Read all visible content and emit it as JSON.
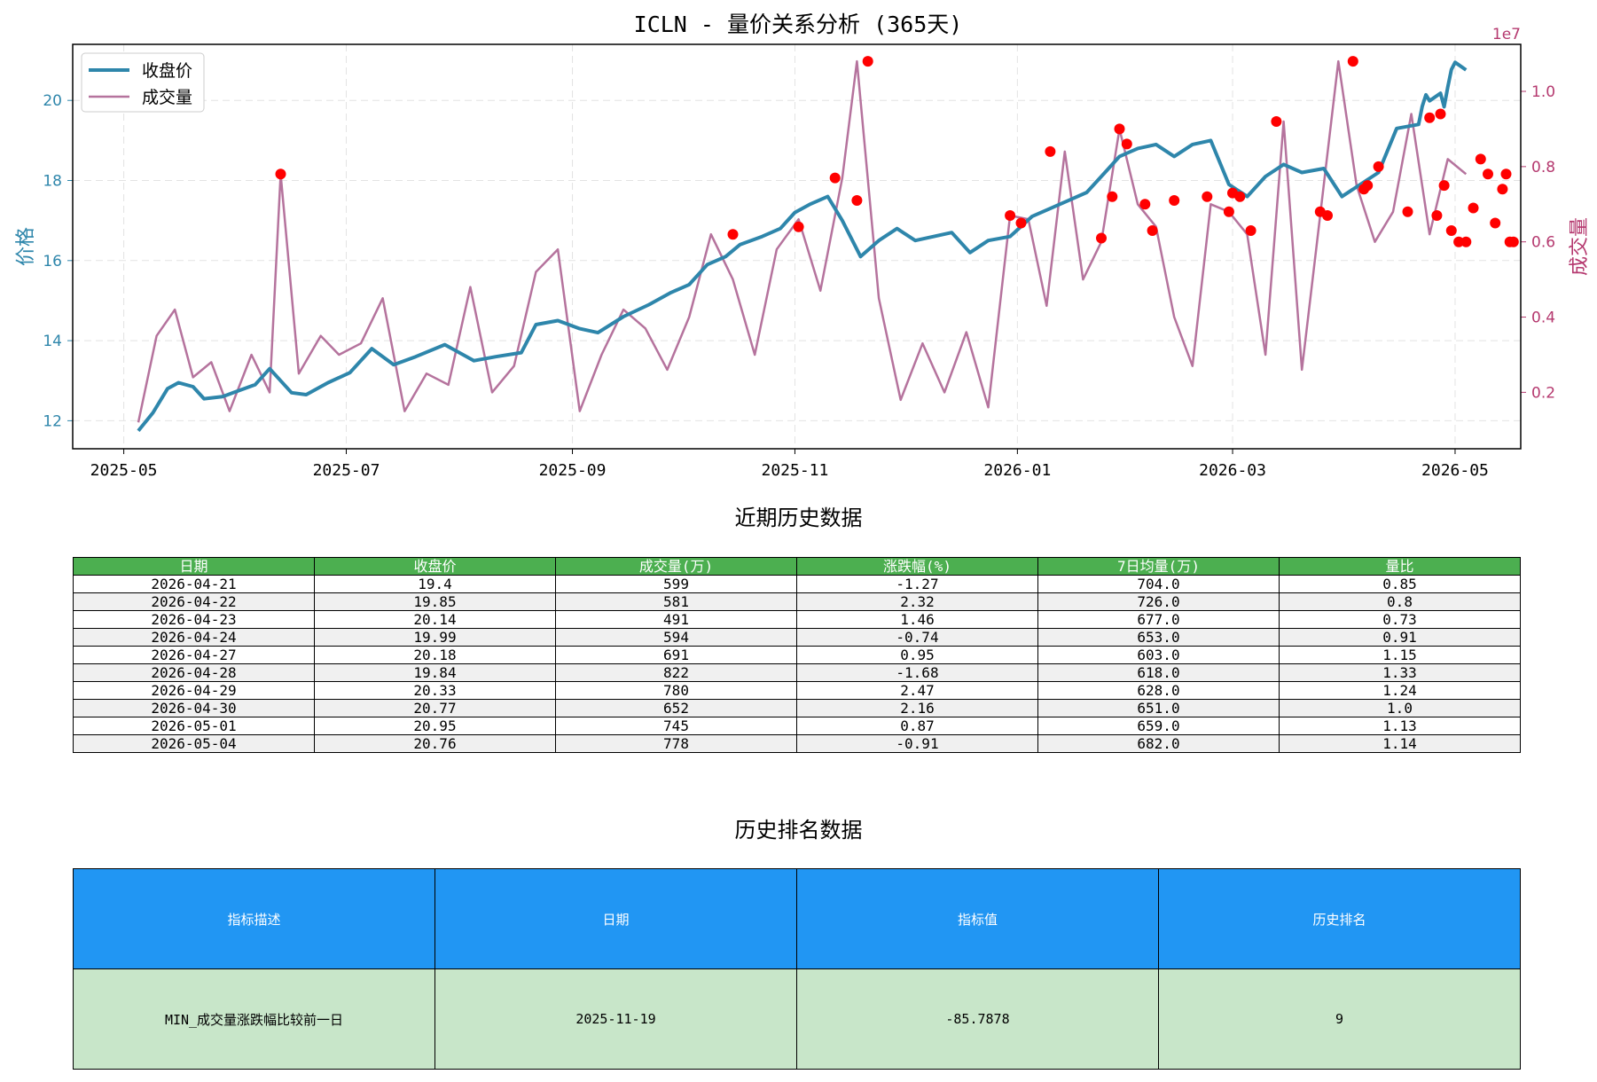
{
  "chart_data": {
    "type": "line",
    "title": "ICLN - 量价关系分析 (365天)",
    "ylabel_left": "价格",
    "ylabel_right": "成交量",
    "right_axis_multiplier": "1e7",
    "x_tick_labels": [
      "2025-05",
      "2025-07",
      "2025-09",
      "2025-11",
      "2026-01",
      "2026-03",
      "2026-05"
    ],
    "x_ticks": [
      "2025-05-01",
      "2025-07-01",
      "2025-09-01",
      "2025-11-01",
      "2026-01-01",
      "2026-03-01",
      "2026-05-01"
    ],
    "xlim": [
      "2025-04-17",
      "2026-05-19"
    ],
    "ylim_left": [
      11.3,
      21.4
    ],
    "ylim_right": [
      0.05,
      1.125
    ],
    "y_ticks_left": [
      12,
      14,
      16,
      18,
      20
    ],
    "y_ticks_right": [
      0.2,
      0.4,
      0.6,
      0.8,
      1.0
    ],
    "grid": true,
    "legend_position": "top-left",
    "colors": {
      "price": "#2e86ab",
      "volume": "#b5739d",
      "markers": "#ff0000"
    },
    "series": [
      {
        "name": "收盘价",
        "axis": "left",
        "x": [
          "2025-05-05",
          "2025-05-09",
          "2025-05-13",
          "2025-05-16",
          "2025-05-20",
          "2025-05-23",
          "2025-05-28",
          "2025-05-31",
          "2025-06-06",
          "2025-06-10",
          "2025-06-16",
          "2025-06-20",
          "2025-06-26",
          "2025-07-02",
          "2025-07-08",
          "2025-07-14",
          "2025-07-20",
          "2025-07-28",
          "2025-08-05",
          "2025-08-11",
          "2025-08-18",
          "2025-08-22",
          "2025-08-28",
          "2025-09-03",
          "2025-09-08",
          "2025-09-15",
          "2025-09-22",
          "2025-09-28",
          "2025-10-03",
          "2025-10-08",
          "2025-10-13",
          "2025-10-17",
          "2025-10-23",
          "2025-10-28",
          "2025-11-01",
          "2025-11-05",
          "2025-11-10",
          "2025-11-14",
          "2025-11-19",
          "2025-11-24",
          "2025-11-29",
          "2025-12-04",
          "2025-12-09",
          "2025-12-14",
          "2025-12-19",
          "2025-12-24",
          "2025-12-30",
          "2026-01-05",
          "2026-01-10",
          "2026-01-15",
          "2026-01-20",
          "2026-01-25",
          "2026-01-29",
          "2026-02-03",
          "2026-02-08",
          "2026-02-13",
          "2026-02-18",
          "2026-02-23",
          "2026-02-28",
          "2026-03-05",
          "2026-03-10",
          "2026-03-15",
          "2026-03-20",
          "2026-03-26",
          "2026-03-31",
          "2026-04-05",
          "2026-04-10",
          "2026-04-15",
          "2026-04-21",
          "2026-04-22",
          "2026-04-23",
          "2026-04-24",
          "2026-04-27",
          "2026-04-28",
          "2026-04-29",
          "2026-04-30",
          "2026-05-01",
          "2026-05-04"
        ],
        "values": [
          11.75,
          12.2,
          12.8,
          12.95,
          12.85,
          12.55,
          12.6,
          12.7,
          12.9,
          13.3,
          12.7,
          12.65,
          12.95,
          13.2,
          13.8,
          13.4,
          13.6,
          13.9,
          13.5,
          13.6,
          13.7,
          14.4,
          14.5,
          14.3,
          14.2,
          14.6,
          14.9,
          15.2,
          15.4,
          15.9,
          16.1,
          16.4,
          16.6,
          16.8,
          17.2,
          17.4,
          17.6,
          17.0,
          16.1,
          16.5,
          16.8,
          16.5,
          16.6,
          16.7,
          16.2,
          16.5,
          16.6,
          17.1,
          17.3,
          17.5,
          17.7,
          18.2,
          18.6,
          18.8,
          18.9,
          18.6,
          18.9,
          19.0,
          17.9,
          17.6,
          18.1,
          18.4,
          18.2,
          18.3,
          17.6,
          17.9,
          18.2,
          19.3,
          19.4,
          19.85,
          20.14,
          19.99,
          20.18,
          19.84,
          20.33,
          20.77,
          20.95,
          20.76
        ]
      },
      {
        "name": "成交量",
        "axis": "right",
        "x": [
          "2025-05-05",
          "2025-05-10",
          "2025-05-15",
          "2025-05-20",
          "2025-05-25",
          "2025-05-30",
          "2025-06-05",
          "2025-06-10",
          "2025-06-13",
          "2025-06-18",
          "2025-06-24",
          "2025-06-29",
          "2025-07-05",
          "2025-07-11",
          "2025-07-17",
          "2025-07-23",
          "2025-07-29",
          "2025-08-04",
          "2025-08-10",
          "2025-08-16",
          "2025-08-22",
          "2025-08-28",
          "2025-09-03",
          "2025-09-09",
          "2025-09-15",
          "2025-09-21",
          "2025-09-27",
          "2025-10-03",
          "2025-10-09",
          "2025-10-15",
          "2025-10-21",
          "2025-10-27",
          "2025-11-02",
          "2025-11-08",
          "2025-11-14",
          "2025-11-18",
          "2025-11-24",
          "2025-11-30",
          "2025-12-06",
          "2025-12-12",
          "2025-12-18",
          "2025-12-24",
          "2025-12-30",
          "2026-01-04",
          "2026-01-09",
          "2026-01-14",
          "2026-01-19",
          "2026-01-24",
          "2026-01-29",
          "2026-02-03",
          "2026-02-08",
          "2026-02-13",
          "2026-02-18",
          "2026-02-23",
          "2026-02-28",
          "2026-03-05",
          "2026-03-10",
          "2026-03-15",
          "2026-03-20",
          "2026-03-25",
          "2026-03-30",
          "2026-04-04",
          "2026-04-09",
          "2026-04-14",
          "2026-04-19",
          "2026-04-24",
          "2026-04-29",
          "2026-05-04"
        ],
        "values": [
          0.12,
          0.35,
          0.42,
          0.24,
          0.28,
          0.15,
          0.3,
          0.2,
          0.78,
          0.25,
          0.35,
          0.3,
          0.33,
          0.45,
          0.15,
          0.25,
          0.22,
          0.48,
          0.2,
          0.27,
          0.52,
          0.58,
          0.15,
          0.3,
          0.42,
          0.37,
          0.26,
          0.4,
          0.62,
          0.5,
          0.3,
          0.58,
          0.66,
          0.47,
          0.77,
          1.08,
          0.45,
          0.18,
          0.33,
          0.2,
          0.36,
          0.16,
          0.67,
          0.66,
          0.43,
          0.84,
          0.5,
          0.6,
          0.9,
          0.7,
          0.64,
          0.4,
          0.27,
          0.7,
          0.68,
          0.62,
          0.3,
          0.92,
          0.26,
          0.67,
          1.08,
          0.75,
          0.6,
          0.68,
          0.94,
          0.62,
          0.82,
          0.78
        ]
      },
      {
        "name": "",
        "type": "scatter",
        "axis": "right",
        "x": [
          "2025-06-13",
          "2025-10-15",
          "2025-11-02",
          "2025-11-12",
          "2025-11-18",
          "2025-11-21",
          "2025-12-30",
          "2026-01-02",
          "2026-01-10",
          "2026-01-24",
          "2026-01-27",
          "2026-01-29",
          "2026-01-31",
          "2026-02-05",
          "2026-02-07",
          "2026-02-13",
          "2026-02-22",
          "2026-02-28",
          "2026-03-01",
          "2026-03-03",
          "2026-03-06",
          "2026-03-13",
          "2026-03-25",
          "2026-03-27",
          "2026-04-03",
          "2026-04-06",
          "2026-04-07",
          "2026-04-10",
          "2026-04-18",
          "2026-04-24",
          "2026-04-26",
          "2026-04-27",
          "2026-04-28",
          "2026-04-30",
          "2026-05-02",
          "2026-05-04",
          "2026-05-06",
          "2026-05-08",
          "2026-05-10",
          "2026-05-12",
          "2026-05-14",
          "2026-05-15",
          "2026-05-16",
          "2026-05-17"
        ],
        "values": [
          0.78,
          0.62,
          0.64,
          0.77,
          0.71,
          1.08,
          0.67,
          0.65,
          0.84,
          0.61,
          0.72,
          0.9,
          0.86,
          0.7,
          0.63,
          0.71,
          0.72,
          0.68,
          0.73,
          0.72,
          0.63,
          0.92,
          0.68,
          0.67,
          1.08,
          0.74,
          0.75,
          0.8,
          0.68,
          0.93,
          0.67,
          0.94,
          0.75,
          0.63,
          0.6,
          0.6,
          0.69,
          0.82,
          0.78,
          0.65,
          0.74,
          0.78,
          0.6,
          0.6
        ]
      }
    ]
  },
  "recent_section": {
    "title": "近期历史数据",
    "headers": [
      "日期",
      "收盘价",
      "成交量(万)",
      "涨跌幅(%)",
      "7日均量(万)",
      "量比"
    ],
    "rows": [
      [
        "2026-04-21",
        "19.4",
        "599",
        "-1.27",
        "704.0",
        "0.85"
      ],
      [
        "2026-04-22",
        "19.85",
        "581",
        "2.32",
        "726.0",
        "0.8"
      ],
      [
        "2026-04-23",
        "20.14",
        "491",
        "1.46",
        "677.0",
        "0.73"
      ],
      [
        "2026-04-24",
        "19.99",
        "594",
        "-0.74",
        "653.0",
        "0.91"
      ],
      [
        "2026-04-27",
        "20.18",
        "691",
        "0.95",
        "603.0",
        "1.15"
      ],
      [
        "2026-04-28",
        "19.84",
        "822",
        "-1.68",
        "618.0",
        "1.33"
      ],
      [
        "2026-04-29",
        "20.33",
        "780",
        "2.47",
        "628.0",
        "1.24"
      ],
      [
        "2026-04-30",
        "20.77",
        "652",
        "2.16",
        "651.0",
        "1.0"
      ],
      [
        "2026-05-01",
        "20.95",
        "745",
        "0.87",
        "659.0",
        "1.13"
      ],
      [
        "2026-05-04",
        "20.76",
        "778",
        "-0.91",
        "682.0",
        "1.14"
      ]
    ]
  },
  "rank_section": {
    "title": "历史排名数据",
    "headers": [
      "指标描述",
      "日期",
      "指标值",
      "历史排名"
    ],
    "rows": [
      [
        "MIN_成交量涨跌幅比较前一日",
        "2025-11-19",
        "-85.7878",
        "9"
      ]
    ]
  }
}
